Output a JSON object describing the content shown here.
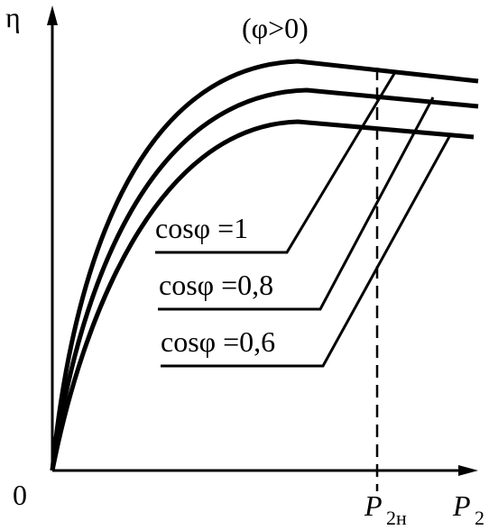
{
  "axes": {
    "y_label": "η",
    "origin": "0",
    "x_label": {
      "symbol": "P",
      "subscript": "2"
    }
  },
  "condition": "(φ>0)",
  "rated_power": {
    "symbol": "P",
    "subscript": "2н"
  },
  "curves": [
    {
      "label": "cosφ =1"
    },
    {
      "label": "cosφ =0,8"
    },
    {
      "label": "cosφ =0,6"
    }
  ]
}
